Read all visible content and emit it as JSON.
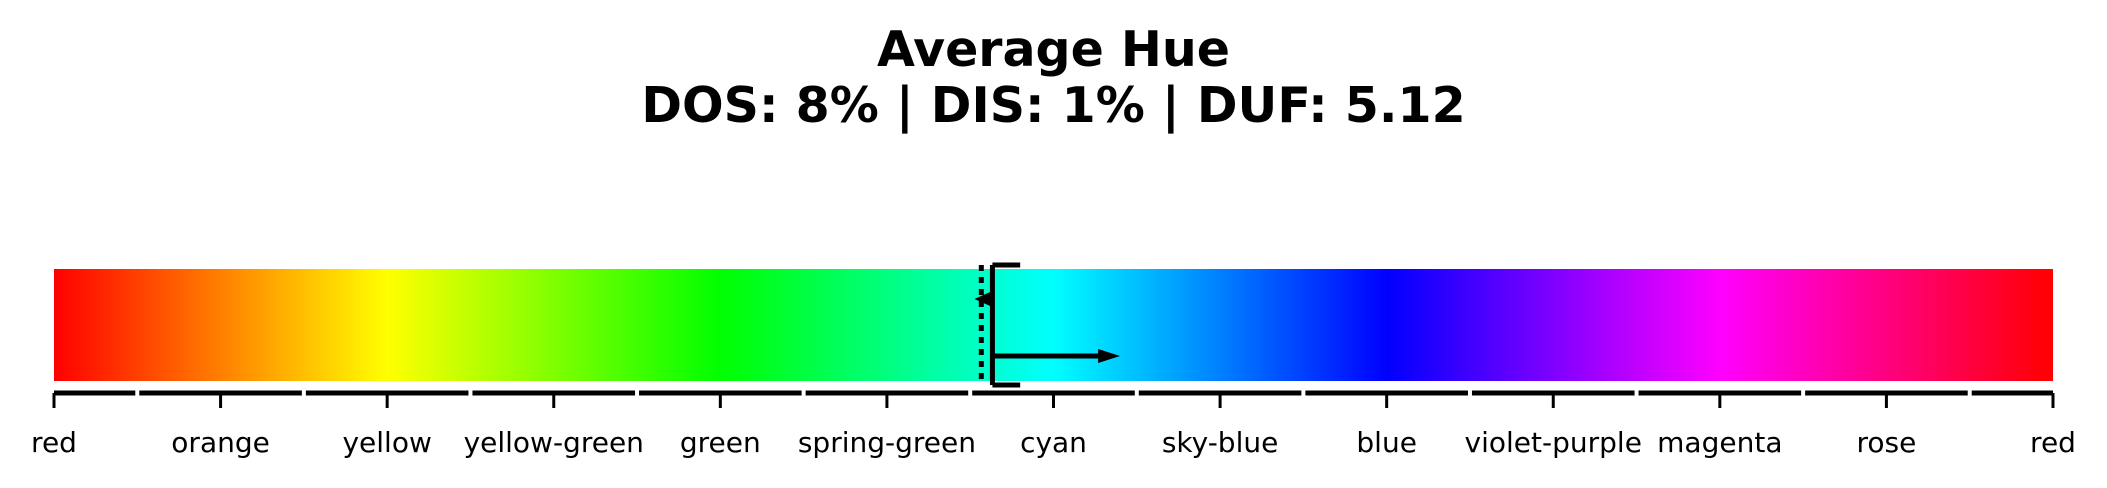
{
  "chart_data": {
    "type": "hue-bar",
    "title": "Average Hue",
    "subtitle": "DOS: 8% | DIS: 1% | DUF: 5.12",
    "categories": [
      "red",
      "orange",
      "yellow",
      "yellow-green",
      "green",
      "spring-green",
      "cyan",
      "sky-blue",
      "blue",
      "violet-purple",
      "magenta",
      "rose",
      "red"
    ],
    "category_hues_deg": [
      0,
      30,
      60,
      90,
      120,
      150,
      180,
      210,
      240,
      270,
      300,
      330,
      360
    ],
    "xlim": [
      0,
      360
    ],
    "markers": {
      "dotted_line_hue": 167,
      "solid_line_hue": 169,
      "arrow_start_hue": 169,
      "arrow_end_hue": 192,
      "dis_bracket_hue_range": [
        167,
        174
      ]
    },
    "colors": {
      "marker": "#000000",
      "tick": "#000000"
    }
  }
}
